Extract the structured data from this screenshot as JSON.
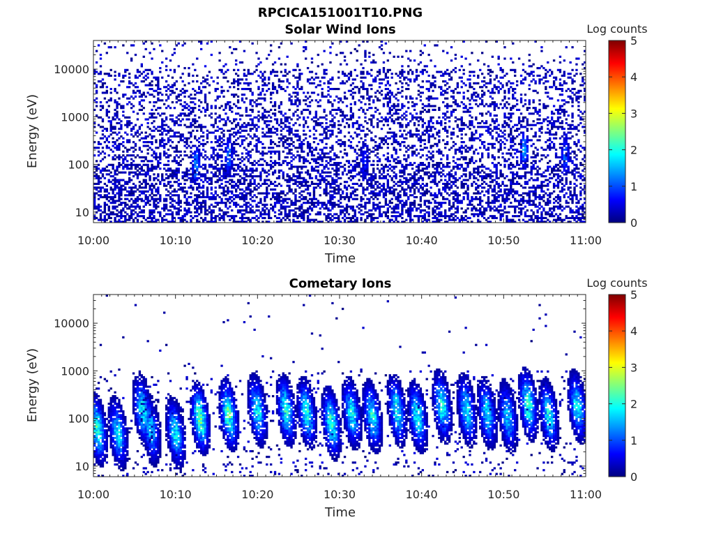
{
  "figure": {
    "title": "RPCICA151001T10.PNG"
  },
  "colormap": {
    "name": "jet",
    "stops": [
      "#00007f",
      "#0000ff",
      "#007fff",
      "#00ffff",
      "#7fff7f",
      "#ffff00",
      "#ff7f00",
      "#ff0000",
      "#7f0000"
    ]
  },
  "chart_data": [
    {
      "type": "heatmap",
      "title": "Solar Wind Ions",
      "xlabel": "Time",
      "ylabel": "Energy (eV)",
      "x_range": [
        "10:00",
        "11:00"
      ],
      "x_ticks": [
        "10:00",
        "10:10",
        "10:20",
        "10:30",
        "10:40",
        "10:50",
        "11:00"
      ],
      "y_scale": "log",
      "y_range": [
        6,
        40000
      ],
      "y_ticks": [
        10,
        100,
        1000,
        10000
      ],
      "y_tick_labels": [
        "10",
        "100",
        "1000",
        "10000"
      ],
      "colorbar": {
        "label": "Log counts",
        "range": [
          0,
          5
        ],
        "ticks": [
          "0",
          "1",
          "2",
          "3",
          "4",
          "5"
        ]
      },
      "description": "Sparse low-count noise (log counts mostly 0-0.5) across all energies 6 eV-20 keV with slightly denser counts below 100 eV; weak enhancements (~1.5-2) near 100 eV at the cometary ion bursts.",
      "enhancements": [
        {
          "time": "10:12:30",
          "energy_eV": 100,
          "log_counts": 1.8
        },
        {
          "time": "10:16:30",
          "energy_eV": 150,
          "log_counts": 1.5
        },
        {
          "time": "10:33:00",
          "energy_eV": 120,
          "log_counts": 1.0
        },
        {
          "time": "10:52:30",
          "energy_eV": 200,
          "log_counts": 1.8
        },
        {
          "time": "10:57:30",
          "energy_eV": 150,
          "log_counts": 1.5
        }
      ]
    },
    {
      "type": "heatmap",
      "title": "Cometary Ions",
      "xlabel": "Time",
      "ylabel": "Energy (eV)",
      "x_range": [
        "10:00",
        "11:00"
      ],
      "x_ticks": [
        "10:00",
        "10:10",
        "10:20",
        "10:30",
        "10:40",
        "10:50",
        "11:00"
      ],
      "y_scale": "log",
      "y_range": [
        6,
        40000
      ],
      "y_ticks": [
        10,
        100,
        1000,
        10000
      ],
      "y_tick_labels": [
        "10",
        "100",
        "1000",
        "10000"
      ],
      "colorbar": {
        "label": "Log counts",
        "range": [
          0,
          5
        ],
        "ticks": [
          "0",
          "1",
          "2",
          "3",
          "4",
          "5"
        ]
      },
      "description": "Quasi-periodic bursts of cometary ions between ~10 eV and ~1 keV, peaking near 100 eV with log counts up to ~3; sparse isolated counts above 1 keV.",
      "bursts": [
        {
          "time": "10:00:30",
          "peak_eV": 60,
          "peak_log_counts": 2.7
        },
        {
          "time": "10:03:00",
          "peak_eV": 50,
          "peak_log_counts": 2.2
        },
        {
          "time": "10:06:00",
          "peak_eV": 150,
          "peak_log_counts": 2.4
        },
        {
          "time": "10:07:00",
          "peak_eV": 60,
          "peak_log_counts": 2.0
        },
        {
          "time": "10:10:00",
          "peak_eV": 50,
          "peak_log_counts": 2.3
        },
        {
          "time": "10:13:00",
          "peak_eV": 100,
          "peak_log_counts": 3.0
        },
        {
          "time": "10:16:30",
          "peak_eV": 120,
          "peak_log_counts": 2.8
        },
        {
          "time": "10:20:00",
          "peak_eV": 150,
          "peak_log_counts": 2.4
        },
        {
          "time": "10:23:30",
          "peak_eV": 150,
          "peak_log_counts": 2.6
        },
        {
          "time": "10:26:00",
          "peak_eV": 130,
          "peak_log_counts": 2.5
        },
        {
          "time": "10:29:00",
          "peak_eV": 80,
          "peak_log_counts": 2.6
        },
        {
          "time": "10:31:30",
          "peak_eV": 130,
          "peak_log_counts": 2.4
        },
        {
          "time": "10:34:00",
          "peak_eV": 110,
          "peak_log_counts": 2.5
        },
        {
          "time": "10:37:00",
          "peak_eV": 150,
          "peak_log_counts": 2.4
        },
        {
          "time": "10:39:30",
          "peak_eV": 110,
          "peak_log_counts": 2.5
        },
        {
          "time": "10:42:30",
          "peak_eV": 180,
          "peak_log_counts": 2.5
        },
        {
          "time": "10:45:30",
          "peak_eV": 150,
          "peak_log_counts": 2.3
        },
        {
          "time": "10:48:00",
          "peak_eV": 130,
          "peak_log_counts": 2.2
        },
        {
          "time": "10:50:30",
          "peak_eV": 110,
          "peak_log_counts": 2.1
        },
        {
          "time": "10:53:00",
          "peak_eV": 200,
          "peak_log_counts": 2.7
        },
        {
          "time": "10:55:30",
          "peak_eV": 120,
          "peak_log_counts": 2.3
        },
        {
          "time": "10:59:00",
          "peak_eV": 180,
          "peak_log_counts": 2.4
        }
      ]
    }
  ]
}
